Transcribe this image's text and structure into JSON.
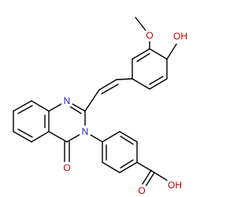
{
  "atom_labels": [
    "O",
    "OH",
    "N",
    "N",
    "O",
    "O",
    "OH"
  ]
}
